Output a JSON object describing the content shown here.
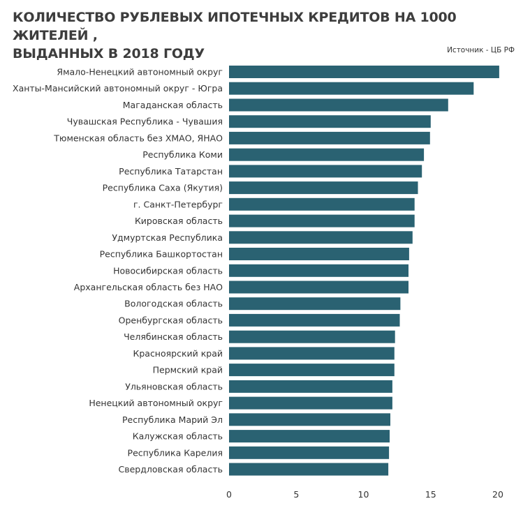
{
  "title_lines": [
    "КОЛИЧЕСТВО РУБЛЕВЫХ ИПОТЕЧНЫХ КРЕДИТОВ НА 1000 ЖИТЕЛЕЙ ,",
    "ВЫДАННЫХ В 2018 ГОДУ"
  ],
  "source": "Источник  - ЦБ РФ",
  "colors": {
    "bar": "#2a6272"
  },
  "chart_data": {
    "type": "bar",
    "orientation": "horizontal",
    "title": "КОЛИЧЕСТВО РУБЛЕВЫХ ИПОТЕЧНЫХ КРЕДИТОВ НА 1000 ЖИТЕЛЕЙ , ВЫДАННЫХ В 2018 ГОДУ",
    "categories": [
      "Ямало-Ненецкий автономный округ",
      "Ханты-Мансийский автономный округ - Югра",
      "Магаданская область",
      "Чувашская Республика - Чувашия",
      "Тюменская область без ХМАО, ЯНАО",
      "Республика Коми",
      "Республика Татарстан",
      "Республика Саха (Якутия)",
      "г. Санкт-Петербург",
      "Кировская область",
      "Удмуртская Республика",
      "Республика Башкортостан",
      "Новосибирская область",
      "Архангельская область без НАО",
      "Вологодская область",
      "Оренбургская область",
      "Челябинская область",
      "Красноярский край",
      "Пермский край",
      "Ульяновская область",
      "Ненецкий автономный округ",
      "Республика Марий Эл",
      "Калужская область",
      "Республика Карелия",
      "Свердловская область"
    ],
    "values": [
      20.1,
      18.2,
      16.3,
      15.0,
      14.95,
      14.5,
      14.35,
      14.05,
      13.8,
      13.8,
      13.65,
      13.4,
      13.35,
      13.35,
      12.75,
      12.7,
      12.35,
      12.3,
      12.3,
      12.15,
      12.15,
      12.0,
      11.95,
      11.9,
      11.85
    ],
    "xlim": [
      0,
      20
    ],
    "xticks": [
      0,
      5,
      10,
      15,
      20
    ],
    "grid": false
  }
}
